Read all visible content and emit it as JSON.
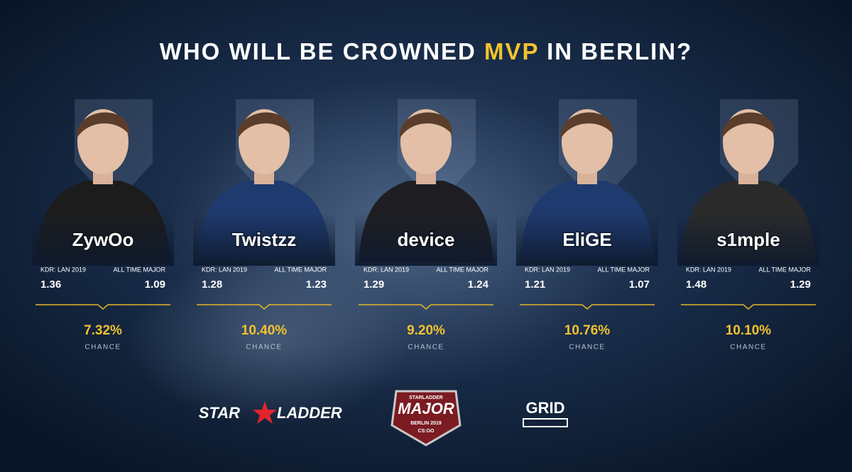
{
  "header": {
    "title_start": "WHO WILL BE CROWNED",
    "title_highlight": "MVP",
    "title_end": "IN BERLIN?"
  },
  "players": [
    {
      "name": "ZywOo",
      "kdr_label": "KDR: LAN 2019",
      "kdr": "1.36",
      "major_label": "ALL TIME MAJOR",
      "major": "1.09",
      "chance": "7.32%",
      "chance_label": "CHANCE"
    },
    {
      "name": "Twistzz",
      "kdr_label": "KDR: LAN 2019",
      "kdr": "1.28",
      "major_label": "ALL TIME MAJOR",
      "major": "1.23",
      "chance": "10.40%",
      "chance_label": "CHANCE"
    },
    {
      "name": "device",
      "kdr_label": "KDR: LAN 2019",
      "kdr": "1.29",
      "major_label": "ALL TIME MAJOR",
      "major": "1.24",
      "chance": "9.20%",
      "chance_label": "CHANCE"
    },
    {
      "name": "EliGE",
      "kdr_label": "KDR: LAN 2019",
      "kdr": "1.21",
      "major_label": "ALL TIME MAJOR",
      "major": "1.07",
      "chance": "10.76%",
      "chance_label": "CHANCE"
    },
    {
      "name": "s1mple",
      "kdr_label": "KDR: LAN 2019",
      "kdr": "1.48",
      "major_label": "ALL TIME MAJOR",
      "major": "1.29",
      "chance": "10.10%",
      "chance_label": "CHANCE"
    }
  ],
  "footer": {
    "starladder_1": "STAR",
    "starladder_2": "LADDER",
    "major_top": "STARLADDER",
    "major": "MAJOR",
    "major_city": "BERLIN 2019",
    "major_game": "CS:GO",
    "grid": "GRID"
  }
}
